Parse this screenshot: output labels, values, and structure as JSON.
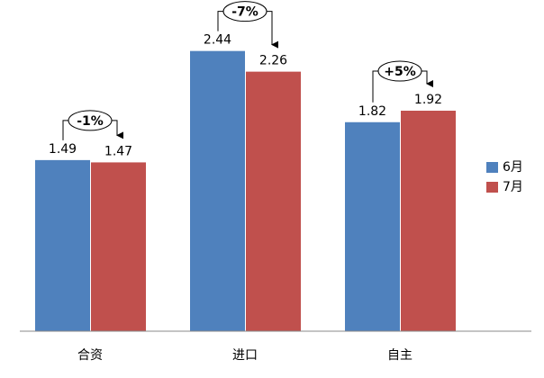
{
  "chart_data": {
    "type": "bar",
    "categories": [
      "合资",
      "进口",
      "自主"
    ],
    "series": [
      {
        "name": "6月",
        "color": "#4f81bd",
        "values": [
          1.49,
          2.44,
          1.82
        ]
      },
      {
        "name": "7月",
        "color": "#c0504d",
        "values": [
          1.47,
          2.26,
          1.92
        ]
      }
    ],
    "annotations": [
      "-1%",
      "-7%",
      "+5%"
    ],
    "ylim": [
      0,
      2.5
    ],
    "legend": "right"
  }
}
